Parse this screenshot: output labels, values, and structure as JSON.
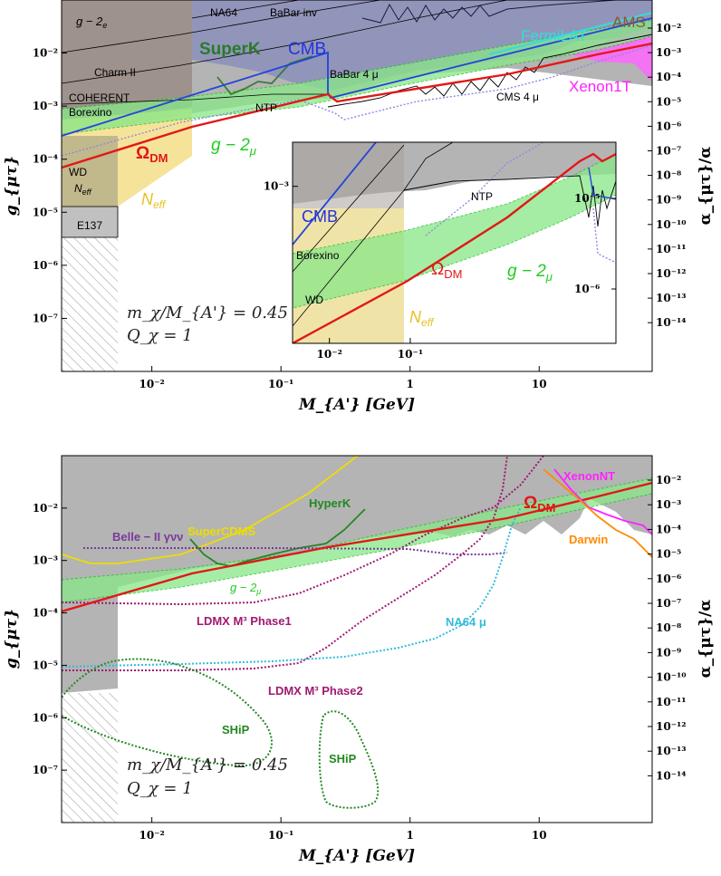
{
  "chart_data": [
    {
      "type": "line",
      "panel": "top",
      "xscale": "log",
      "yscale": "log",
      "xlim": [
        0.002,
        75
      ],
      "ylim": [
        1e-08,
        0.1
      ],
      "xlabel": "M_{A'} [GeV]",
      "ylabel": "g_{μτ}",
      "ylabel_right": "α_{μτ}/α",
      "x_ticks": [
        {
          "v": 0.01,
          "t": "10⁻²"
        },
        {
          "v": 0.1,
          "t": "10⁻¹"
        },
        {
          "v": 1,
          "t": "1"
        },
        {
          "v": 10,
          "t": "10"
        }
      ],
      "y_ticks": [
        {
          "v": 0.01,
          "t": "10⁻²"
        },
        {
          "v": 0.001,
          "t": "10⁻³"
        },
        {
          "v": 0.0001,
          "t": "10⁻⁴"
        },
        {
          "v": 1e-05,
          "t": "10⁻⁵"
        },
        {
          "v": 1e-06,
          "t": "10⁻⁶"
        },
        {
          "v": 1e-07,
          "t": "10⁻⁷"
        }
      ],
      "right_ticks": [
        "10⁻²",
        "10⁻³",
        "10⁻⁴",
        "10⁻⁵",
        "10⁻⁶",
        "10⁻⁷",
        "10⁻⁸",
        "10⁻⁹",
        "10⁻¹⁰",
        "10⁻¹¹",
        "10⁻¹²",
        "10⁻¹³",
        "10⁻¹⁴"
      ],
      "annotation": {
        "line1": "m_χ/M_{A'} = 0.45",
        "line2": "Q_χ = 1"
      },
      "regions": [
        {
          "name": "g − 2_e",
          "color": "#9a8c86",
          "points": [
            [
              0.002,
              0.1
            ],
            [
              0.02,
              0.1
            ],
            [
              0.02,
              0.0009
            ],
            [
              0.002,
              0.0005
            ]
          ]
        },
        {
          "name": "NA64",
          "color": "#8f8fb2",
          "points": [
            [
              0.02,
              0.1
            ],
            [
              0.6,
              0.1
            ],
            [
              0.3,
              0.02
            ],
            [
              0.02,
              0.006
            ]
          ]
        },
        {
          "name": "BaBar inv",
          "color": "#8a8fb8",
          "points": [
            [
              0.6,
              0.1
            ],
            [
              75,
              0.1
            ],
            [
              75,
              0.04
            ],
            [
              0.6,
              0.05
            ]
          ]
        },
        {
          "name": "Charm II",
          "color": "#a8a8a8",
          "points": [
            [
              0.002,
              0.006
            ],
            [
              0.02,
              0.006
            ],
            [
              0.02,
              0.0011
            ],
            [
              0.002,
              0.0011
            ]
          ]
        },
        {
          "name": "COHERENT",
          "color": "#a8a8a8",
          "points": [
            [
              0.002,
              0.0014
            ],
            [
              0.02,
              0.0014
            ],
            [
              0.02,
              0.001
            ],
            [
              0.002,
              0.001
            ]
          ]
        },
        {
          "name": "Borexino",
          "color": "#a8a8a8",
          "points": [
            [
              0.002,
              0.0008
            ],
            [
              0.02,
              0.0008
            ],
            [
              0.02,
              0.0006
            ],
            [
              0.002,
              0.0005
            ]
          ]
        },
        {
          "name": "NTP",
          "color": "#b0b0b0",
          "points": [
            [
              0.02,
              0.0012
            ],
            [
              0.2,
              0.0012
            ],
            [
              0.2,
              0.0009
            ],
            [
              0.02,
              0.0009
            ]
          ]
        },
        {
          "name": "BaBar 4 μ",
          "color": "#a0a0a0",
          "points": [
            [
              0.25,
              0.006
            ],
            [
              1,
              0.006
            ],
            [
              1,
              0.0012
            ],
            [
              0.25,
              0.0012
            ]
          ]
        },
        {
          "name": "CMS 4 μ",
          "color": "#a0a0a0",
          "points": [
            [
              5,
              0.004
            ],
            [
              75,
              0.004
            ],
            [
              75,
              0.001
            ],
            [
              5,
              0.0009
            ]
          ]
        },
        {
          "name": "WD",
          "color": "#bbb58e",
          "points": [
            [
              0.002,
              0.0002
            ],
            [
              0.0055,
              0.0002
            ],
            [
              0.0055,
              1e-05
            ],
            [
              0.002,
              1e-05
            ]
          ]
        },
        {
          "name": "N_eff",
          "color": "#f6e29a",
          "points": [
            [
              0.002,
              0.0007
            ],
            [
              0.02,
              0.0007
            ],
            [
              0.02,
              0.00014
            ],
            [
              0.0055,
              1.2e-05
            ],
            [
              0.002,
              1.2e-05
            ]
          ]
        },
        {
          "name": "E137",
          "color": "#bcbcbc",
          "points": [
            [
              0.002,
              1.5e-05
            ],
            [
              0.0055,
              1.5e-05
            ],
            [
              0.0055,
              4.8e-06
            ],
            [
              0.002,
              4.8e-06
            ]
          ]
        },
        {
          "name": "AMS",
          "color": "#8b5a2b",
          "points": [
            [
              30,
              0.07
            ],
            [
              75,
              0.08
            ],
            [
              75,
              0.05
            ],
            [
              30,
              0.05
            ]
          ]
        },
        {
          "name": "FermiLAT",
          "color": "#32e0e0",
          "points": [
            [
              5,
              0.02
            ],
            [
              75,
              0.04
            ],
            [
              75,
              0.03
            ],
            [
              5,
              0.015
            ]
          ]
        },
        {
          "name": "Xenon1T",
          "color": "#ff55ff",
          "points": [
            [
              20,
              0.02
            ],
            [
              75,
              0.04
            ],
            [
              75,
              0.002
            ],
            [
              50,
              0.005
            ]
          ]
        }
      ],
      "series": [
        {
          "name": "Ω_DM",
          "color": "#e11818",
          "x": [
            0.002,
            0.02,
            0.2,
            0.25,
            0.35,
            1,
            10,
            30,
            75
          ],
          "y": [
            0.0001,
            0.00025,
            0.0009,
            0.0012,
            0.0011,
            0.0015,
            0.0037,
            0.007,
            0.013
          ]
        },
        {
          "name": "CMB",
          "color": "#2244dd",
          "x": [
            0.002,
            0.24,
            0.25,
            0.3,
            75
          ],
          "y": [
            0.0005,
            0.0082,
            0.0009,
            0.001,
            0.03
          ]
        },
        {
          "name": "SuperK",
          "color": "#338833",
          "x": [
            0.04,
            0.05,
            0.08,
            0.12
          ],
          "y": [
            0.0012,
            0.0014,
            0.0022,
            0.003
          ]
        },
        {
          "name": "g − 2_μ",
          "color": "#22cc22",
          "x": [
            0.002,
            0.01,
            0.1,
            1,
            10,
            75
          ],
          "y": [
            0.0004,
            0.0005,
            0.0008,
            0.0025,
            0.005,
            0.012
          ]
        }
      ]
    },
    {
      "type": "line",
      "panel": "inset",
      "xscale": "log",
      "yscale": "log",
      "xlim": [
        0.0035,
        35
      ],
      "ylim": [
        2e-05,
        0.003
      ],
      "x_ticks": [
        {
          "v": 0.01,
          "t": "10⁻²"
        },
        {
          "v": 0.1,
          "t": "10⁻¹"
        }
      ],
      "y_ticks": [
        {
          "v": 0.001,
          "t": "10⁻³"
        }
      ],
      "right_ticks": [
        "10⁻⁵",
        "10⁻⁶"
      ],
      "labels": [
        "CMB",
        "NTP",
        "Borexino",
        "Ω_DM",
        "g − 2_μ",
        "WD",
        "N_eff"
      ]
    },
    {
      "type": "line",
      "panel": "bottom",
      "xscale": "log",
      "yscale": "log",
      "xlim": [
        0.002,
        75
      ],
      "ylim": [
        1e-08,
        0.1
      ],
      "xlabel": "M_{A'} [GeV]",
      "ylabel": "g_{μτ}",
      "ylabel_right": "α_{μτ}/α",
      "x_ticks": [
        {
          "v": 0.01,
          "t": "10⁻²"
        },
        {
          "v": 0.1,
          "t": "10⁻¹"
        },
        {
          "v": 1,
          "t": "1"
        },
        {
          "v": 10,
          "t": "10"
        }
      ],
      "y_ticks": [
        {
          "v": 0.01,
          "t": "10⁻²"
        },
        {
          "v": 0.001,
          "t": "10⁻³"
        },
        {
          "v": 0.0001,
          "t": "10⁻⁴"
        },
        {
          "v": 1e-05,
          "t": "10⁻⁵"
        },
        {
          "v": 1e-06,
          "t": "10⁻⁶"
        },
        {
          "v": 1e-07,
          "t": "10⁻⁷"
        }
      ],
      "right_ticks": [
        "10⁻²",
        "10⁻³",
        "10⁻⁴",
        "10⁻⁵",
        "10⁻⁶",
        "10⁻⁷",
        "10⁻⁸",
        "10⁻⁹",
        "10⁻¹⁰",
        "10⁻¹¹",
        "10⁻¹²",
        "10⁻¹³",
        "10⁻¹⁴"
      ],
      "annotation": {
        "line1": "m_χ/M_{A'} = 0.45",
        "line2": "Q_χ = 1"
      },
      "series": [
        {
          "name": "Ω_DM",
          "color": "#e11818",
          "x": [
            0.002,
            0.02,
            0.2,
            1,
            10,
            75
          ],
          "y": [
            0.0001,
            0.00025,
            0.0009,
            0.0015,
            0.0037,
            0.013
          ]
        },
        {
          "name": "SuperCDMS",
          "color": "#eedd00",
          "x": [
            0.002,
            0.003,
            0.006,
            0.01,
            0.02,
            0.05,
            0.1,
            0.2
          ],
          "y": [
            0.0011,
            0.001,
            0.001,
            0.0015,
            0.003,
            0.012,
            0.04,
            0.1
          ]
        },
        {
          "name": "HyperK",
          "color": "#228822",
          "x": [
            0.03,
            0.04,
            0.06,
            0.1,
            0.2,
            0.35,
            0.45
          ],
          "y": [
            0.0025,
            0.001,
            0.0012,
            0.0018,
            0.002,
            0.0025,
            0.004
          ]
        },
        {
          "name": "Belle − II γνν",
          "color": "#7a3a9a",
          "x": [
            0.003,
            0.02,
            0.1,
            0.5,
            1.5,
            3
          ],
          "y": [
            0.0019,
            0.0019,
            0.0019,
            0.0018,
            0.0015,
            0.0018
          ]
        },
        {
          "name": "LDMX M³ Phase1",
          "color": "#a01a70",
          "x": [
            0.002,
            0.01,
            0.05,
            0.1,
            0.3,
            1,
            3,
            5
          ],
          "y": [
            0.00016,
            0.00016,
            0.00017,
            0.0002,
            0.0005,
            0.002,
            0.01,
            0.09
          ]
        },
        {
          "name": "LDMX M³ Phase2",
          "color": "#a01a70",
          "x": [
            0.002,
            0.01,
            0.05,
            0.1,
            0.2,
            0.5,
            1,
            3,
            5
          ],
          "y": [
            8e-06,
            8e-06,
            9e-06,
            1e-05,
            1.4e-05,
            5e-05,
            0.0002,
            0.003,
            0.06
          ]
        },
        {
          "name": "NA64 μ",
          "color": "#33bbdd",
          "x": [
            0.002,
            0.01,
            0.05,
            0.1,
            0.3,
            1,
            2,
            3.5
          ],
          "y": [
            1.2e-05,
            1.3e-05,
            1.4e-05,
            1.5e-05,
            2e-05,
            6e-05,
            0.0005,
            0.006
          ]
        },
        {
          "name": "XenonNT",
          "color": "#ff22ff",
          "x": [
            12,
            20,
            30,
            50,
            75
          ],
          "y": [
            0.05,
            0.01,
            0.003,
            0.0008,
            0.0004
          ]
        },
        {
          "name": "Darwin",
          "color": "#ff8a00",
          "x": [
            12,
            20,
            30,
            50,
            75
          ],
          "y": [
            0.04,
            0.005,
            0.0012,
            0.0004,
            0.00015
          ]
        }
      ],
      "shaded": [
        {
          "name": "g − 2_μ",
          "color": "#22cc22"
        },
        {
          "name": "excluded",
          "color": "#b0b0b0"
        }
      ],
      "ship_contours": [
        "SHiP",
        "SHiP"
      ]
    }
  ],
  "labels": {
    "top": {
      "g2e": "g − 2",
      "g2e_sub": "e",
      "na64": "NA64",
      "babar_inv": "BaBar inv",
      "charm": "Charm II",
      "coherent": "COHERENT",
      "borexino": "Borexino",
      "superk": "SuperK",
      "cmb": "CMB",
      "babar4": "BaBar 4 μ",
      "ntp": "NTP",
      "cms4": "CMS 4 μ",
      "fermilat": "FermiLAT",
      "ams": "AMS",
      "xenon1t": "Xenon1T",
      "omega": "Ω",
      "omega_sub": "DM",
      "g2mu": "g − 2",
      "g2mu_sub": "μ",
      "wd": "WD",
      "neff_small": "N",
      "neff_small_sub": "eff",
      "neff": "N",
      "neff_sub": "eff",
      "e137": "E137"
    },
    "inset": {
      "cmb": "CMB",
      "ntp": "NTP",
      "borexino": "Borexino",
      "omega": "Ω",
      "omega_sub": "DM",
      "g2mu": "g − 2",
      "g2mu_sub": "μ",
      "wd": "WD",
      "neff": "N",
      "neff_sub": "eff"
    },
    "bottom": {
      "supercdms": "SuperCDMS",
      "hyperk": "HyperK",
      "belle": "Belle − II γνν",
      "g2mu": "g − 2",
      "g2mu_sub": "μ",
      "ldmx1": "LDMX M³ Phase1",
      "ldmx2": "LDMX M³ Phase2",
      "na64mu": "NA64 μ",
      "omega": "Ω",
      "omega_sub": "DM",
      "xenonnt": "XenonNT",
      "darwin": "Darwin",
      "ship1": "SHiP",
      "ship2": "SHiP"
    }
  }
}
